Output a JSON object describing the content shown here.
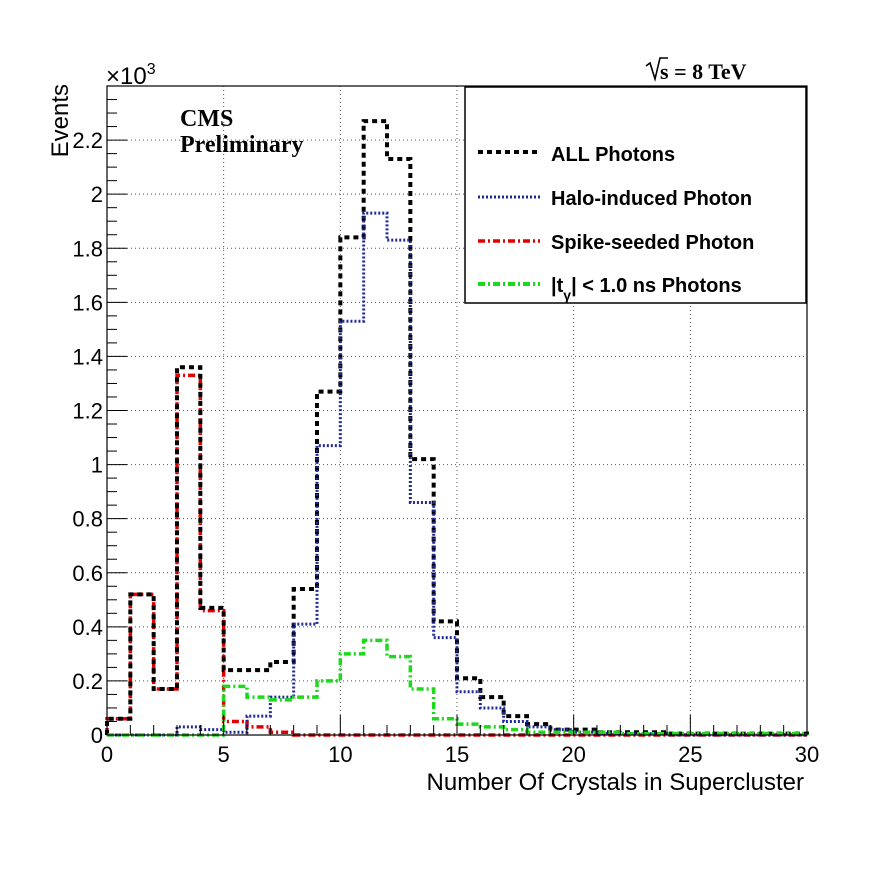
{
  "chart_data": {
    "type": "histogram-step",
    "xlabel": "Number Of Crystals in Supercluster",
    "ylabel": "Events",
    "y_multiplier": "×10",
    "y_multiplier_exp": "3",
    "xlim": [
      0,
      30
    ],
    "ylim": [
      0,
      2.4
    ],
    "x_ticks": [
      0,
      5,
      10,
      15,
      20,
      25,
      30
    ],
    "y_ticks": [
      0,
      0.2,
      0.4,
      0.6,
      0.8,
      1,
      1.2,
      1.4,
      1.6,
      1.8,
      2,
      2.2
    ],
    "grid": true,
    "bin_edges": [
      0,
      1,
      2,
      3,
      4,
      5,
      6,
      7,
      8,
      9,
      10,
      11,
      12,
      13,
      14,
      15,
      16,
      17,
      18,
      19,
      20,
      21,
      22,
      23,
      24,
      25,
      26,
      27,
      28,
      29,
      30
    ],
    "annotations": {
      "experiment": "CMS",
      "status": "Preliminary",
      "energy_prefix": "s",
      "energy_value": " = 8 TeV"
    },
    "legend_placement": "top-right",
    "series": [
      {
        "name": "ALL Photons",
        "color": "#000000",
        "dash": "dotted",
        "values": [
          0.06,
          0.52,
          0.17,
          1.36,
          0.47,
          0.24,
          0.24,
          0.27,
          0.54,
          1.27,
          1.84,
          2.27,
          2.13,
          1.02,
          0.42,
          0.21,
          0.14,
          0.07,
          0.04,
          0.02,
          0.02,
          0.01,
          0.01,
          0.01,
          0.005,
          0.005,
          0.005,
          0.005,
          0.005,
          0.005
        ]
      },
      {
        "name": "Halo-induced Photon",
        "color": "#1f2a9a",
        "dash": "dotted-fine",
        "values": [
          0,
          0,
          0,
          0.03,
          0.02,
          0.01,
          0.07,
          0.14,
          0.41,
          1.07,
          1.53,
          1.93,
          1.83,
          0.86,
          0.36,
          0.16,
          0.1,
          0.05,
          0.03,
          0.02,
          0.01,
          0.005,
          0.005,
          0.005,
          0,
          0,
          0,
          0,
          0,
          0
        ]
      },
      {
        "name": "Spike-seeded Photon",
        "color": "#e00000",
        "dash": "dashdot",
        "values": [
          0.06,
          0.52,
          0.17,
          1.33,
          0.46,
          0.05,
          0.03,
          0.01,
          0,
          0,
          0,
          0,
          0,
          0,
          0,
          0,
          0,
          0,
          0,
          0,
          0,
          0,
          0,
          0,
          0,
          0,
          0,
          0,
          0,
          0
        ]
      },
      {
        "name_prefix": "|t",
        "name_sub": "γ",
        "name_suffix": "| < 1.0 ns Photons",
        "color": "#1ed81e",
        "dash": "dashdot",
        "values": [
          0,
          0,
          0,
          0,
          0,
          0.18,
          0.14,
          0.13,
          0.14,
          0.2,
          0.3,
          0.35,
          0.29,
          0.17,
          0.06,
          0.04,
          0.03,
          0.02,
          0.01,
          0.01,
          0.01,
          0.01,
          0.005,
          0.005,
          0.005,
          0.005,
          0.005,
          0.005,
          0.005,
          0.005
        ]
      }
    ]
  }
}
